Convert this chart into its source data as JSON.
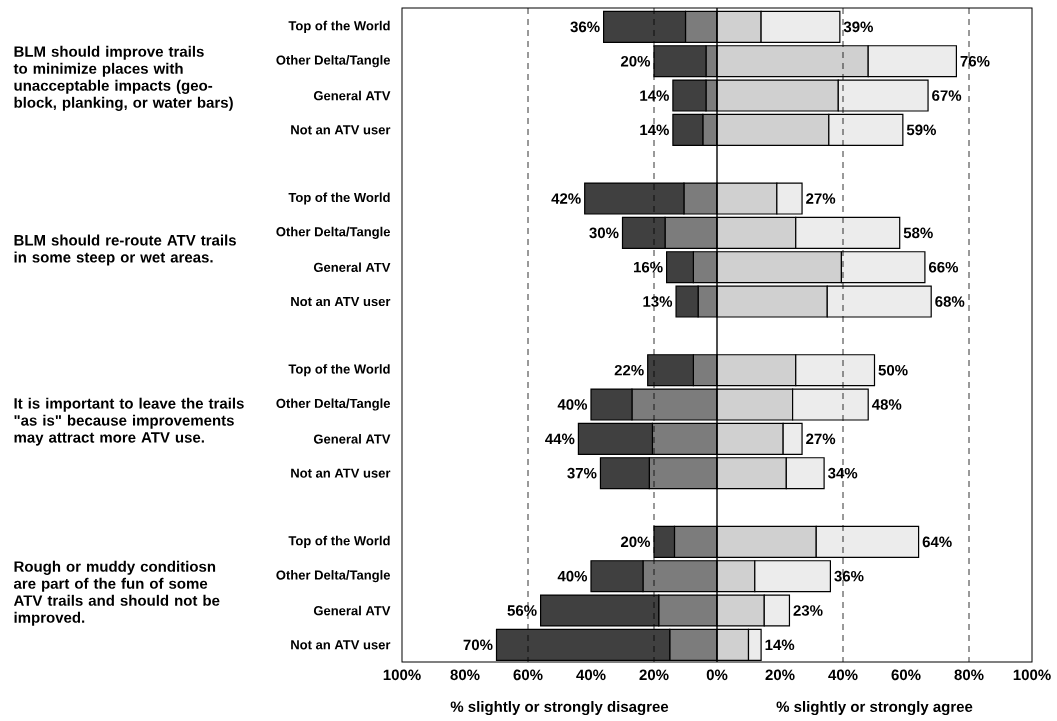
{
  "chart_data": {
    "type": "bar",
    "orientation": "horizontal",
    "stacked": true,
    "xlabel": "% slightly or strongly disagree",
    "annotations": [
      "BLM should improve trails to minimize places with unacceptable impacts (geo-block, planking, or water bars)",
      "BLM should re-route ATV trails in some steep or wet areas.",
      "It is important to leave the trails \"as is\" because improvements may attract more ATV use.",
      "Rough or muddy conditiosn are part of the fun of some ATV trails and should not be improved.",
      "% slightly or strongly agree"
    ],
    "categories": [
      "Top of the World",
      "Other Delta/Tangle",
      "General ATV",
      "Not an ATV user",
      null,
      "Top of the World",
      "Other Delta/Tangle",
      "General ATV",
      "Not an ATV user",
      null,
      "Top of the World",
      "Other Delta/Tangle",
      "General ATV",
      "Not an ATV user",
      null,
      "Top of the World",
      "Other Delta/Tangle",
      "General ATV",
      "Not an ATV user"
    ],
    "series": [
      {
        "color": "#7c7c7c",
        "values": [
          -10,
          -3.5,
          -3.5,
          -4.5,
          null,
          -10.5,
          -16.5,
          -7.5,
          -6,
          null,
          -7.5,
          -27,
          -20.5,
          -21.5,
          null,
          -13.5,
          -23.5,
          -18.5,
          -15
        ]
      },
      {
        "color": "#404040",
        "values": [
          -26,
          -16.5,
          -10.5,
          -9.5,
          null,
          -31.5,
          -13.5,
          -8.5,
          -7,
          null,
          -14.5,
          -13,
          -23.5,
          -15.5,
          null,
          -6.5,
          -16.5,
          -37.5,
          -55
        ]
      },
      {
        "color": "#d0d0d0",
        "values": [
          14,
          48,
          38.5,
          35.5,
          null,
          19,
          25,
          39.5,
          35,
          null,
          25,
          24,
          21,
          22,
          null,
          31.5,
          12,
          15,
          10
        ]
      },
      {
        "color": "#ececec",
        "values": [
          25,
          28,
          28.5,
          23.5,
          null,
          8,
          33,
          26.5,
          33,
          null,
          25,
          24,
          6,
          12,
          null,
          32.5,
          24,
          8,
          4
        ]
      }
    ],
    "totals": [
      [
        "36%",
        "39%"
      ],
      [
        "20%",
        "76%"
      ],
      [
        "14%",
        "67%"
      ],
      [
        "14%",
        "59%"
      ],
      null,
      [
        "42%",
        "27%"
      ],
      [
        "30%",
        "58%"
      ],
      [
        "16%",
        "66%"
      ],
      [
        "13%",
        "68%"
      ],
      null,
      [
        "22%",
        "50%"
      ],
      [
        "40%",
        "48%"
      ],
      [
        "44%",
        "27%"
      ],
      [
        "37%",
        "34%"
      ],
      null,
      [
        "20%",
        "64%"
      ],
      [
        "40%",
        "36%"
      ],
      [
        "56%",
        "23%"
      ],
      [
        "70%",
        "14%"
      ]
    ],
    "xlim": [
      -100,
      100
    ],
    "xticks": [
      {
        "value": -100,
        "label": "100%"
      },
      {
        "value": -80,
        "label": "80%"
      },
      {
        "value": -60,
        "label": "60%"
      },
      {
        "value": -40,
        "label": "40%"
      },
      {
        "value": -20,
        "label": "20%"
      },
      {
        "value": 0,
        "label": "0%"
      },
      {
        "value": 20,
        "label": "20%"
      },
      {
        "value": 40,
        "label": "40%"
      },
      {
        "value": 60,
        "label": "60%"
      },
      {
        "value": 80,
        "label": "80%"
      },
      {
        "value": 100,
        "label": "100%"
      }
    ],
    "ref_lines": [
      {
        "axis": "x",
        "value": -60,
        "line_style": "dashed"
      },
      {
        "axis": "x",
        "value": -20,
        "line_style": "dashed"
      },
      {
        "axis": "x",
        "value": 40,
        "line_style": "dashed"
      },
      {
        "axis": "x",
        "value": 80,
        "line_style": "dashed"
      }
    ]
  }
}
